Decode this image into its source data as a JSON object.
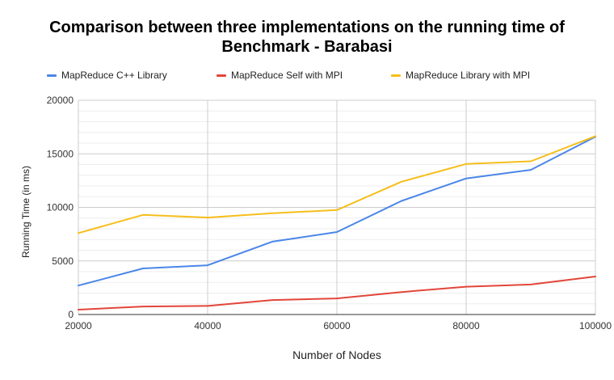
{
  "chart_data": {
    "type": "line",
    "title_lines": [
      "Comparison between three implementations on the running time of",
      "Benchmark - Barabasi"
    ],
    "xlabel": "Number of Nodes",
    "ylabel": "Running Time (in ms)",
    "x": [
      20000,
      30000,
      40000,
      50000,
      60000,
      70000,
      80000,
      90000,
      100000
    ],
    "xlim": [
      20000,
      100000
    ],
    "ylim": [
      0,
      20000
    ],
    "x_ticks": [
      "20000",
      "40000",
      "60000",
      "80000",
      "100000"
    ],
    "y_ticks": [
      "0",
      "5000",
      "10000",
      "15000",
      "20000"
    ],
    "legend_position": "top",
    "grid": true,
    "series": [
      {
        "name": "MapReduce C++ Library",
        "color": "#4a86e8",
        "values": [
          2700,
          4300,
          4600,
          6800,
          7700,
          10600,
          12700,
          13500,
          16600
        ]
      },
      {
        "name": "MapReduce Self with MPI",
        "color": "#e2463a",
        "values": [
          450,
          750,
          800,
          1350,
          1500,
          2100,
          2600,
          2800,
          3550
        ]
      },
      {
        "name": "MapReduce Library with MPI",
        "color": "#f6be1a",
        "values": [
          7600,
          9300,
          9050,
          9450,
          9750,
          12400,
          14050,
          14300,
          16650
        ]
      }
    ]
  }
}
